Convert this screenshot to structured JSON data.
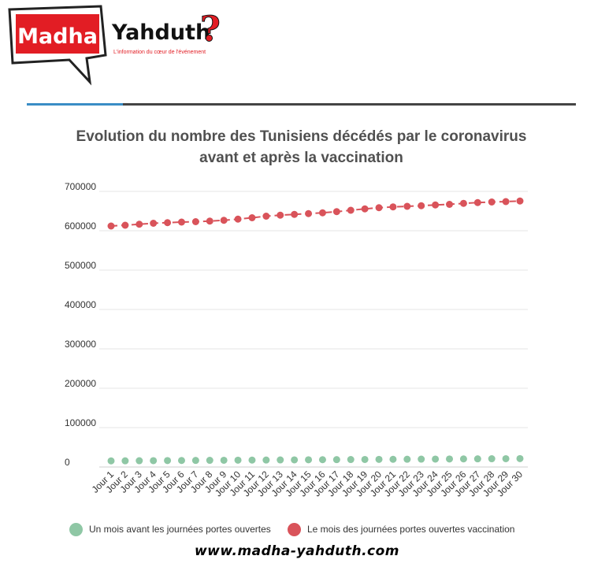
{
  "logo": {
    "word1": "Madha",
    "word2": "Yahduth",
    "qmark": "?",
    "tagline": "L'information du cœur de l'événement"
  },
  "chart_data": {
    "type": "line",
    "title_line1": "Evolution du nombre des Tunisiens décédés par le coronavirus",
    "title_line2": "avant et après la vaccination",
    "categories": [
      "Jour 1",
      "Jour 2",
      "Jour 3",
      "Jour 4",
      "Jour 5",
      "Jour 6",
      "Jour 7",
      "Jour 8",
      "Jour 9",
      "Jour 10",
      "Jour 11",
      "Jour 12",
      "Jour 13",
      "Jour 14",
      "Jour 15",
      "Jour 16",
      "Jour 17",
      "Jour 18",
      "Jour 19",
      "Jour 20",
      "Jour 21",
      "Jour 22",
      "Jour 23",
      "Jour 24",
      "Jour 25",
      "Jour 26",
      "Jour 27",
      "Jour 28",
      "Jour 29",
      "Jour 30"
    ],
    "y_ticks": [
      "0",
      "100000",
      "200000",
      "300000",
      "400000",
      "500000",
      "600000",
      "700000"
    ],
    "ylim": [
      0,
      700000
    ],
    "grid": true,
    "legend_position": "bottom",
    "series": [
      {
        "name": "Un mois avant les journées portes ouvertes",
        "color": "#8fc7a5",
        "style": "dots",
        "values": [
          15500,
          15700,
          15900,
          16100,
          16300,
          16500,
          16700,
          16900,
          17100,
          17300,
          17500,
          17700,
          17900,
          18100,
          18300,
          18500,
          18700,
          18900,
          19100,
          19300,
          19500,
          19700,
          19900,
          20100,
          20300,
          20500,
          20700,
          20900,
          21100,
          21300
        ]
      },
      {
        "name": "Le mois des journées portes ouvertes vaccination",
        "color": "#d9535a",
        "style": "dashed-dots",
        "values": [
          612000,
          614000,
          616500,
          619000,
          620500,
          622000,
          623000,
          624500,
          626500,
          629500,
          633000,
          637000,
          639500,
          641500,
          643500,
          645500,
          648500,
          652000,
          655500,
          658500,
          660500,
          662000,
          663500,
          665500,
          667000,
          669500,
          671500,
          673000,
          674000,
          675500
        ]
      }
    ]
  },
  "footer": {
    "url": "www.madha-yahduth.com"
  }
}
